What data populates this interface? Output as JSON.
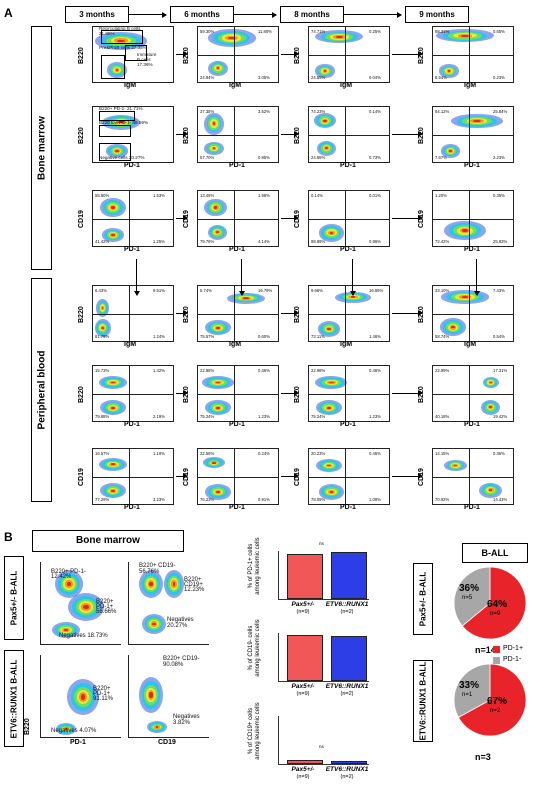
{
  "panel_a": {
    "letter": "A",
    "timepoints": [
      "3 months",
      "6 months",
      "8 months",
      "9 months"
    ],
    "sections": [
      "Bone marrow",
      "Peripheral blood"
    ],
    "rows": [
      {
        "y": "B220",
        "x": "IgM",
        "plots": [
          {
            "gates": [
              "Recirculating B cells",
              "21.85%",
              "Pre&ProB cells 37.38%",
              "Immature",
              "B cells",
              "17.36%"
            ],
            "q": [
              "",
              "",
              "",
              ""
            ]
          },
          {
            "q": [
              "59.30%",
              "11.80%",
              "24.94%",
              "3.05%"
            ]
          },
          {
            "q": [
              "74.71%",
              "0.25%",
              "24.85%",
              "0.04%"
            ]
          },
          {
            "q": [
              "98.31%",
              "0.65%",
              "8.64%",
              "0.23%"
            ]
          }
        ]
      },
      {
        "y": "B220",
        "x": "PD-1",
        "plots": [
          {
            "gates": [
              "B220+ PD-1- 21.71%",
              "B220 low PD-1- 49.59%",
              "Negative cells 20.27%"
            ],
            "q": [
              "",
              "",
              "",
              ""
            ]
          },
          {
            "q": [
              "37.35%",
              "3.52%",
              "57.70%",
              "0.85%"
            ]
          },
          {
            "q": [
              "74.23%",
              "0.14%",
              "24.86%",
              "0.73%"
            ]
          },
          {
            "q": [
              "64.12%",
              "25.84%",
              "7.67%",
              "2.23%"
            ]
          }
        ]
      },
      {
        "y": "CD19",
        "x": "PD-1",
        "plots": [
          {
            "q": [
              "55.80%",
              "1.53%",
              "41.42%",
              "1.25%"
            ]
          },
          {
            "q": [
              "13.45%",
              "1.98%",
              "79.76%",
              "4.14%"
            ]
          },
          {
            "q": [
              "0.14%",
              "0.01%",
              "98.89%",
              "0.96%"
            ]
          },
          {
            "q": [
              "1.20%",
              "0.35%",
              "72.42%",
              "25.93%"
            ]
          }
        ]
      },
      {
        "y": "B220",
        "x": "IgM",
        "plots": [
          {
            "q": [
              "6.43%",
              "9.51%",
              "81.79%",
              "1.24%"
            ]
          },
          {
            "q": [
              "5.74%",
              "16.79%",
              "75.57%",
              "0.60%"
            ]
          },
          {
            "q": [
              "9.66%",
              "16.66%",
              "73.11%",
              "1.46%"
            ]
          },
          {
            "q": [
              "33.10%",
              "7.43%",
              "58.74%",
              "0.54%"
            ]
          }
        ]
      },
      {
        "y": "B220",
        "x": "PD-1",
        "plots": [
          {
            "q": [
              "15.73%",
              "1.42%",
              "79.88%",
              "2.19%"
            ]
          },
          {
            "q": [
              "22.98%",
              "0.46%",
              "75.24%",
              "1.23%"
            ]
          },
          {
            "q": [
              "22.98%",
              "0.46%",
              "75.24%",
              "1.23%"
            ]
          },
          {
            "q": [
              "22.99%",
              "17.31%",
              "40.18%",
              "19.42%"
            ]
          }
        ]
      },
      {
        "y": "CD19",
        "x": "PD-1",
        "plots": [
          {
            "q": [
              "16.57%",
              "1.19%",
              "77.29%",
              "3.23%"
            ]
          },
          {
            "q": [
              "22.56%",
              "0.24%",
              "76.23%",
              "0.91%"
            ]
          },
          {
            "q": [
              "20.23%",
              "0.45%",
              "78.09%",
              "1.09%"
            ]
          },
          {
            "q": [
              "14.15%",
              "0.35%",
              "70.92%",
              "14.43%"
            ]
          }
        ]
      }
    ]
  },
  "panel_b": {
    "letter": "B",
    "header": "Bone marrow",
    "row_labels": [
      "Pax5+/- B-ALL",
      "ETV6::RUNX1 B-ALL"
    ],
    "flow_axes": {
      "y": "B220",
      "x1": "PD-1",
      "x2": "CD19"
    },
    "flow_gates": {
      "pax_pd1": [
        "B220+ PD-1-",
        "12.42%",
        "B220+",
        "PD-1+",
        "56.66%",
        "Negatives 18.73%"
      ],
      "pax_cd19": [
        "B220+ CD19-",
        "56.76%",
        "B220+",
        "CD19+",
        "12.23%",
        "Negatives",
        "20.27%"
      ],
      "etv_pd1": [
        "B220+",
        "PD-1+",
        "91.11%",
        "Negatives 4.07%"
      ],
      "etv_cd19": [
        "B220+ CD19-",
        "90.08%",
        "Negatives",
        "3.82%"
      ]
    },
    "bars": [
      {
        "ylabel": "% of PD-1+ cells among leukemic cells",
        "ns": "ns",
        "values": [
          93,
          97
        ],
        "colors": [
          "#f25757",
          "#2e3ee6"
        ]
      },
      {
        "ylabel": "% of CD19- cells among leukemic cells",
        "ns": "",
        "values": [
          95,
          94
        ],
        "colors": [
          "#f25757",
          "#2e3ee6"
        ]
      },
      {
        "ylabel": "% of CD19+ cells among leukemic cells",
        "ns": "ns",
        "values": [
          5,
          3
        ],
        "colors": [
          "#f25757",
          "#2e3ee6"
        ]
      }
    ],
    "groups": [
      {
        "name": "Pax5+/-",
        "n": "(n=9)"
      },
      {
        "name": "ETV6::RUNX1",
        "n": "(n=2)"
      }
    ],
    "pie_title": "B-ALL",
    "pies": [
      {
        "label": "Pax5+/- B-ALL",
        "pos": 64,
        "neg": 36,
        "pos_n": "n=9",
        "neg_n": "n=5",
        "total": "n=14"
      },
      {
        "label": "ETV6::RUNX1 B-ALL",
        "pos": 67,
        "neg": 33,
        "pos_n": "n=2",
        "neg_n": "n=1",
        "total": "n=3"
      }
    ],
    "legend": [
      {
        "label": "PD-1+",
        "color": "#e8232a"
      },
      {
        "label": "PD-1-",
        "color": "#a7a7a7"
      }
    ]
  }
}
